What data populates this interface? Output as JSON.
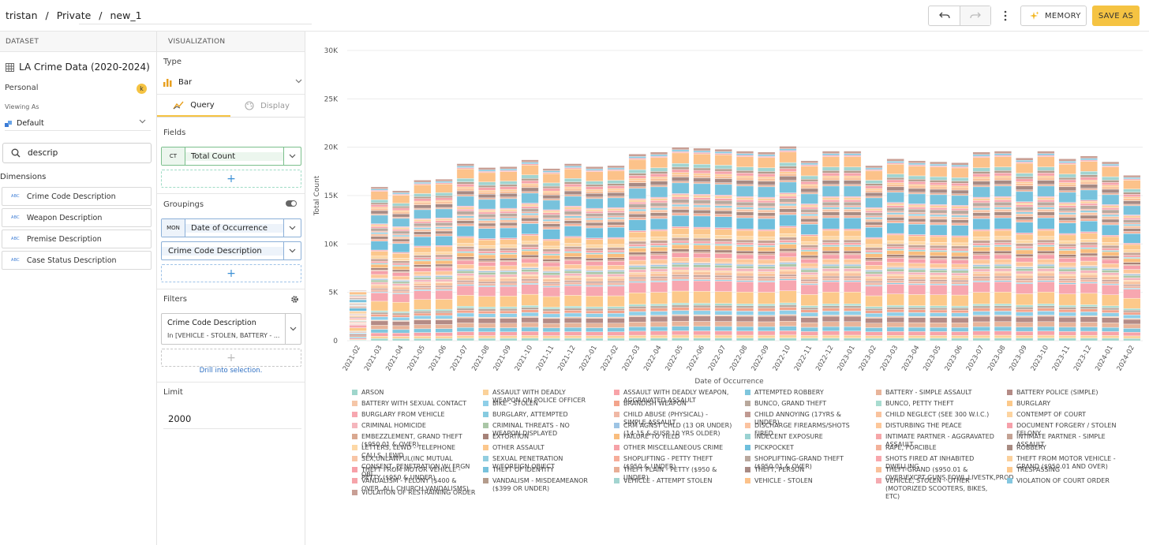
{
  "header": {
    "breadcrumb": [
      "tristan",
      "Private",
      "new_1"
    ],
    "separator": "/",
    "memory_label": "MEMORY",
    "save_label": "SAVE AS"
  },
  "dataset": {
    "section_label": "DATASET",
    "title": "LA Crime Data (2020-2024)",
    "owner": "Personal",
    "avatar_initial": "k",
    "viewing_as_label": "Viewing As",
    "viewing_as_value": "Default",
    "search_value": "descrip",
    "dimensions_label": "Dimensions",
    "dimension_tag": "ABC",
    "dimensions": [
      "Crime Code Description",
      "Weapon Description",
      "Premise Description",
      "Case Status Description"
    ]
  },
  "visualization": {
    "section_label": "VISUALIZATION",
    "type_label": "Type",
    "type_value": "Bar",
    "tabs": [
      "Query",
      "Display"
    ],
    "fields_label": "Fields",
    "field": {
      "tag": "CT",
      "name": "Total Count"
    },
    "groupings_label": "Groupings",
    "groupings": [
      {
        "tag": "MON",
        "name": "Date of Occurrence"
      },
      {
        "tag": "",
        "name": "Crime Code Description"
      }
    ],
    "filters_label": "Filters",
    "filter": {
      "name": "Crime Code Description",
      "value": "In [VEHICLE - STOLEN, BATTERY - ..."
    },
    "drill_label": "Drill into selection.",
    "limit_label": "Limit",
    "limit_value": "2000",
    "add_symbol": "+"
  },
  "chart_data": {
    "type": "bar",
    "stacked": true,
    "xlabel": "Date of Occurrence",
    "ylabel": "Total Count",
    "ylim": [
      0,
      30000
    ],
    "yticks": [
      0,
      5000,
      10000,
      15000,
      20000,
      25000,
      30000
    ],
    "ytick_labels": [
      "0",
      "5K",
      "10K",
      "15K",
      "20K",
      "25K",
      "30K"
    ],
    "grid": true,
    "legend_position": "bottom",
    "categories": [
      "2021-02",
      "2021-03",
      "2021-04",
      "2021-05",
      "2021-06",
      "2021-07",
      "2021-08",
      "2021-09",
      "2021-10",
      "2021-11",
      "2021-12",
      "2022-01",
      "2022-02",
      "2022-03",
      "2022-04",
      "2022-05",
      "2022-06",
      "2022-07",
      "2022-08",
      "2022-09",
      "2022-10",
      "2022-11",
      "2022-12",
      "2023-01",
      "2023-02",
      "2023-03",
      "2023-04",
      "2023-05",
      "2023-06",
      "2023-07",
      "2023-08",
      "2023-09",
      "2023-10",
      "2023-11",
      "2023-12",
      "2024-01",
      "2024-02"
    ],
    "totals": [
      5200,
      15900,
      15500,
      16600,
      16700,
      18300,
      17900,
      18000,
      18700,
      17800,
      18300,
      18000,
      18100,
      19300,
      19500,
      20000,
      19900,
      19800,
      19600,
      19500,
      20100,
      18600,
      19600,
      19600,
      18100,
      18800,
      18600,
      18500,
      18400,
      19500,
      19600,
      18900,
      19600,
      18800,
      19100,
      18500,
      17100
    ],
    "series": [
      {
        "name": "ARSON",
        "color": "#9fd6cc"
      },
      {
        "name": "ASSAULT WITH DEADLY WEAPON ON POLICE OFFICER",
        "color": "#fbd29a"
      },
      {
        "name": "ASSAULT WITH DEADLY WEAPON, AGGRAVATED ASSAULT",
        "color": "#f8a3a8"
      },
      {
        "name": "ATTEMPTED ROBBERY",
        "color": "#7fc6dd"
      },
      {
        "name": "BATTERY - SIMPLE ASSAULT",
        "color": "#e8b49a"
      },
      {
        "name": "BATTERY POLICE (SIMPLE)",
        "color": "#b48b86"
      },
      {
        "name": "BATTERY WITH SEXUAL CONTACT",
        "color": "#f5c6a8"
      },
      {
        "name": "BIKE - STOLEN",
        "color": "#8fcfe8"
      },
      {
        "name": "BRANDISH WEAPON",
        "color": "#f3a48c"
      },
      {
        "name": "BUNCO, GRAND THEFT",
        "color": "#b8a89c"
      },
      {
        "name": "BUNCO, PETTY THEFT",
        "color": "#a8dcd0"
      },
      {
        "name": "BURGLARY",
        "color": "#fcc98a"
      },
      {
        "name": "BURGLARY FROM VEHICLE",
        "color": "#f7a7b0"
      },
      {
        "name": "BURGLARY, ATTEMPTED",
        "color": "#86cbe0"
      },
      {
        "name": "CHILD ABUSE (PHYSICAL) - SIMPLE ASSAULT",
        "color": "#f0b8a5"
      },
      {
        "name": "CHILD ANNOYING (17YRS & UNDER)",
        "color": "#c09a92"
      },
      {
        "name": "CHILD NEGLECT (SEE 300 W.I.C.)",
        "color": "#f9c39e"
      },
      {
        "name": "CONTEMPT OF COURT",
        "color": "#fdd4a0"
      },
      {
        "name": "CRIMINAL HOMICIDE",
        "color": "#f5b6bd"
      },
      {
        "name": "CRIMINAL THREATS - NO WEAPON DISPLAYED",
        "color": "#aac6a6"
      },
      {
        "name": "CRM AGNST CHLD (13 OR UNDER) (14-15 & SUSP 10 YRS OLDER)",
        "color": "#9dc4e4"
      },
      {
        "name": "DISCHARGE FIREARMS/SHOTS FIRED",
        "color": "#fbc3a0"
      },
      {
        "name": "DISTURBING THE PEACE",
        "color": "#fdc79a"
      },
      {
        "name": "DOCUMENT FORGERY / STOLEN FELONY",
        "color": "#f6a0aa"
      },
      {
        "name": "EMBEZZLEMENT, GRAND THEFT ($950.01 & OVER)",
        "color": "#d9a890"
      },
      {
        "name": "EXTORTION",
        "color": "#a68278"
      },
      {
        "name": "FAILURE TO YIELD",
        "color": "#f9bd7e"
      },
      {
        "name": "INDECENT EXPOSURE",
        "color": "#9ad2d2"
      },
      {
        "name": "INTIMATE PARTNER - AGGRAVATED ASSAULT",
        "color": "#f6a6a8"
      },
      {
        "name": "INTIMATE PARTNER - SIMPLE ASSAULT",
        "color": "#c4a294"
      },
      {
        "name": "LETTERS, LEWD - TELEPHONE CALLS, LEWD",
        "color": "#fdd8a6"
      },
      {
        "name": "OTHER ASSAULT",
        "color": "#fcc78c"
      },
      {
        "name": "OTHER MISCELLANEOUS CRIME",
        "color": "#f6a2a8"
      },
      {
        "name": "PICKPOCKET",
        "color": "#6fbfdc"
      },
      {
        "name": "RAPE, FORCIBLE",
        "color": "#f3b19a"
      },
      {
        "name": "ROBBERY",
        "color": "#a88b82"
      },
      {
        "name": "SEX,UNLAWFUL(INC MUTUAL CONSENT, PENETRATION W/ FRGN OBJ",
        "color": "#f8c5a6"
      },
      {
        "name": "SEXUAL PENETRATION W/FOREIGN OBJECT",
        "color": "#92cee0"
      },
      {
        "name": "SHOPLIFTING - PETTY THEFT ($950 & UNDER)",
        "color": "#f6ad9a"
      },
      {
        "name": "SHOPLIFTING-GRAND THEFT ($950.01 & OVER)",
        "color": "#b9a89e"
      },
      {
        "name": "SHOTS FIRED AT INHABITED DWELLING",
        "color": "#f8a6ac"
      },
      {
        "name": "THEFT FROM MOTOR VEHICLE - GRAND ($950.01 AND OVER)",
        "color": "#fbd19c"
      },
      {
        "name": "THEFT FROM MOTOR VEHICLE - PETTY ($950 & UNDER)",
        "color": "#f7a0a8"
      },
      {
        "name": "THEFT OF IDENTITY",
        "color": "#78c2dc"
      },
      {
        "name": "THEFT PLAIN - PETTY ($950 & UNDER)",
        "color": "#e8ae96"
      },
      {
        "name": "THEFT, PERSON",
        "color": "#a78a84"
      },
      {
        "name": "THEFT-GRAND ($950.01 & OVER)EXCPT,GUNS,FOWL,LIVESTK,PROD",
        "color": "#f9c09a"
      },
      {
        "name": "TRESPASSING",
        "color": "#fdc98e"
      },
      {
        "name": "VANDALISM - FELONY ($400 & OVER, ALL CHURCH VANDALISMS)",
        "color": "#f6a4aa"
      },
      {
        "name": "VANDALISM - MISDEAMEANOR ($399 OR UNDER)",
        "color": "#b49c8c"
      },
      {
        "name": "VEHICLE - ATTEMPT STOLEN",
        "color": "#a2d4d0"
      },
      {
        "name": "VEHICLE - STOLEN",
        "color": "#fcc28a"
      },
      {
        "name": "VEHICLE, STOLEN - OTHER (MOTORIZED SCOOTERS, BIKES, ETC)",
        "color": "#f5aab0"
      },
      {
        "name": "VIOLATION OF COURT ORDER",
        "color": "#84c7e0"
      },
      {
        "name": "VIOLATION OF RESTRAINING ORDER",
        "color": "#c89f95"
      }
    ]
  }
}
